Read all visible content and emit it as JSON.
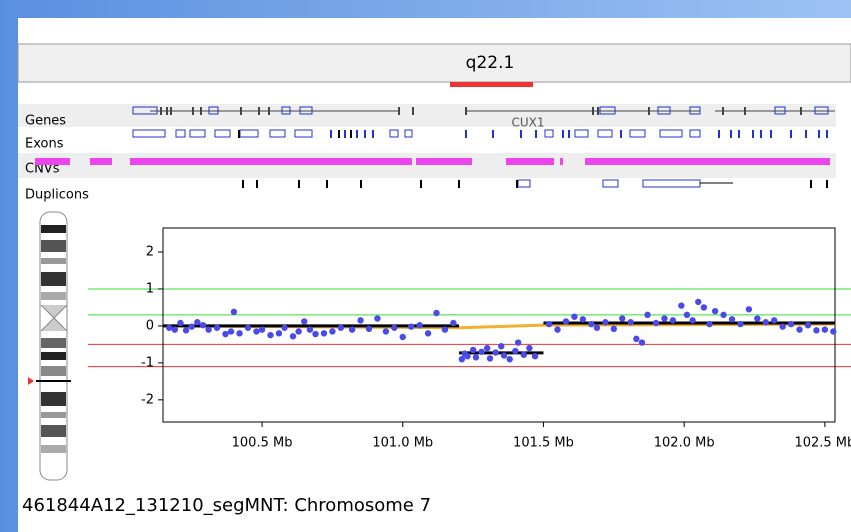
{
  "header": {
    "band": "q22.1"
  },
  "tracks": [
    "Genes",
    "Exons",
    "CNVs",
    "Duplicons"
  ],
  "gene_label": "CUX1",
  "footer": "461844A12_131210_segMNT: Chromosome 7",
  "chart_data": {
    "type": "scatter",
    "x": [
      100.17,
      100.19,
      100.21,
      100.23,
      100.25,
      100.27,
      100.29,
      100.31,
      100.34,
      100.37,
      100.39,
      100.4,
      100.42,
      100.45,
      100.48,
      100.5,
      100.53,
      100.56,
      100.58,
      100.61,
      100.63,
      100.65,
      100.67,
      100.69,
      100.72,
      100.75,
      100.78,
      100.82,
      100.85,
      100.88,
      100.91,
      100.94,
      100.97,
      101.0,
      101.03,
      101.06,
      101.09,
      101.12,
      101.15,
      101.18,
      101.21,
      101.22,
      101.23,
      101.25,
      101.26,
      101.28,
      101.3,
      101.31,
      101.33,
      101.35,
      101.36,
      101.38,
      101.4,
      101.41,
      101.43,
      101.45,
      101.47,
      101.52,
      101.55,
      101.58,
      101.61,
      101.64,
      101.67,
      101.69,
      101.72,
      101.75,
      101.78,
      101.81,
      101.83,
      101.85,
      101.87,
      101.9,
      101.93,
      101.96,
      101.99,
      102.01,
      102.03,
      102.05,
      102.07,
      102.09,
      102.11,
      102.14,
      102.17,
      102.2,
      102.23,
      102.26,
      102.29,
      102.32,
      102.35,
      102.38,
      102.41,
      102.44,
      102.47,
      102.5,
      102.53
    ],
    "y": [
      -0.05,
      -0.1,
      0.08,
      -0.12,
      -0.02,
      0.1,
      0.02,
      -0.1,
      -0.05,
      -0.22,
      -0.15,
      0.38,
      -0.2,
      -0.05,
      -0.15,
      -0.1,
      -0.25,
      -0.2,
      -0.05,
      -0.28,
      -0.15,
      0.12,
      -0.1,
      -0.22,
      -0.2,
      -0.15,
      -0.05,
      -0.1,
      0.15,
      -0.08,
      0.2,
      -0.15,
      -0.05,
      -0.3,
      -0.02,
      0.02,
      -0.2,
      0.35,
      -0.1,
      0.08,
      -0.9,
      -0.75,
      -0.82,
      -0.65,
      -0.85,
      -0.7,
      -0.6,
      -0.88,
      -0.72,
      -0.55,
      -0.8,
      -0.9,
      -0.68,
      -0.45,
      -0.78,
      -0.6,
      -0.82,
      0.05,
      -0.1,
      0.12,
      0.25,
      0.18,
      0.05,
      -0.05,
      0.1,
      -0.08,
      0.2,
      0.1,
      -0.35,
      -0.45,
      0.3,
      0.08,
      0.2,
      0.15,
      0.55,
      0.3,
      0.15,
      0.65,
      0.5,
      0.05,
      0.4,
      0.3,
      0.18,
      0.05,
      0.45,
      0.2,
      0.1,
      0.15,
      -0.02,
      0.05,
      -0.1,
      0.02,
      -0.12,
      -0.1,
      -0.15
    ],
    "color": "#4a4ae8",
    "xlim": [
      100.148,
      102.536
    ],
    "ylim": [
      -2.6,
      2.65
    ],
    "xticks": [
      {
        "value": 100.5,
        "label": "100.5 Mb"
      },
      {
        "value": 101.0,
        "label": "101.0 Mb"
      },
      {
        "value": 101.5,
        "label": "101.5 Mb"
      },
      {
        "value": 102.0,
        "label": "102.0 Mb"
      },
      {
        "value": 102.5,
        "label": "102.5 Mb"
      }
    ],
    "yticks": [
      2,
      1,
      0,
      -1,
      -2
    ],
    "segments": {
      "x0": [
        100.148,
        101.2,
        101.5
      ],
      "x1": [
        101.2,
        101.5,
        102.536
      ],
      "y": [
        0,
        -0.73,
        0.08
      ],
      "color": "#000000"
    },
    "trend": {
      "x": [
        100.148,
        101.2,
        101.5,
        102.536
      ],
      "y": [
        0,
        -0.05,
        0.02,
        0.05
      ],
      "color": "#f0b030"
    },
    "thresholds": {
      "values": [
        1,
        0.3,
        -0.5,
        -1.1
      ],
      "colors": [
        "#33dd33",
        "#33dd33",
        "#ee3333",
        "#ee3333"
      ]
    }
  }
}
